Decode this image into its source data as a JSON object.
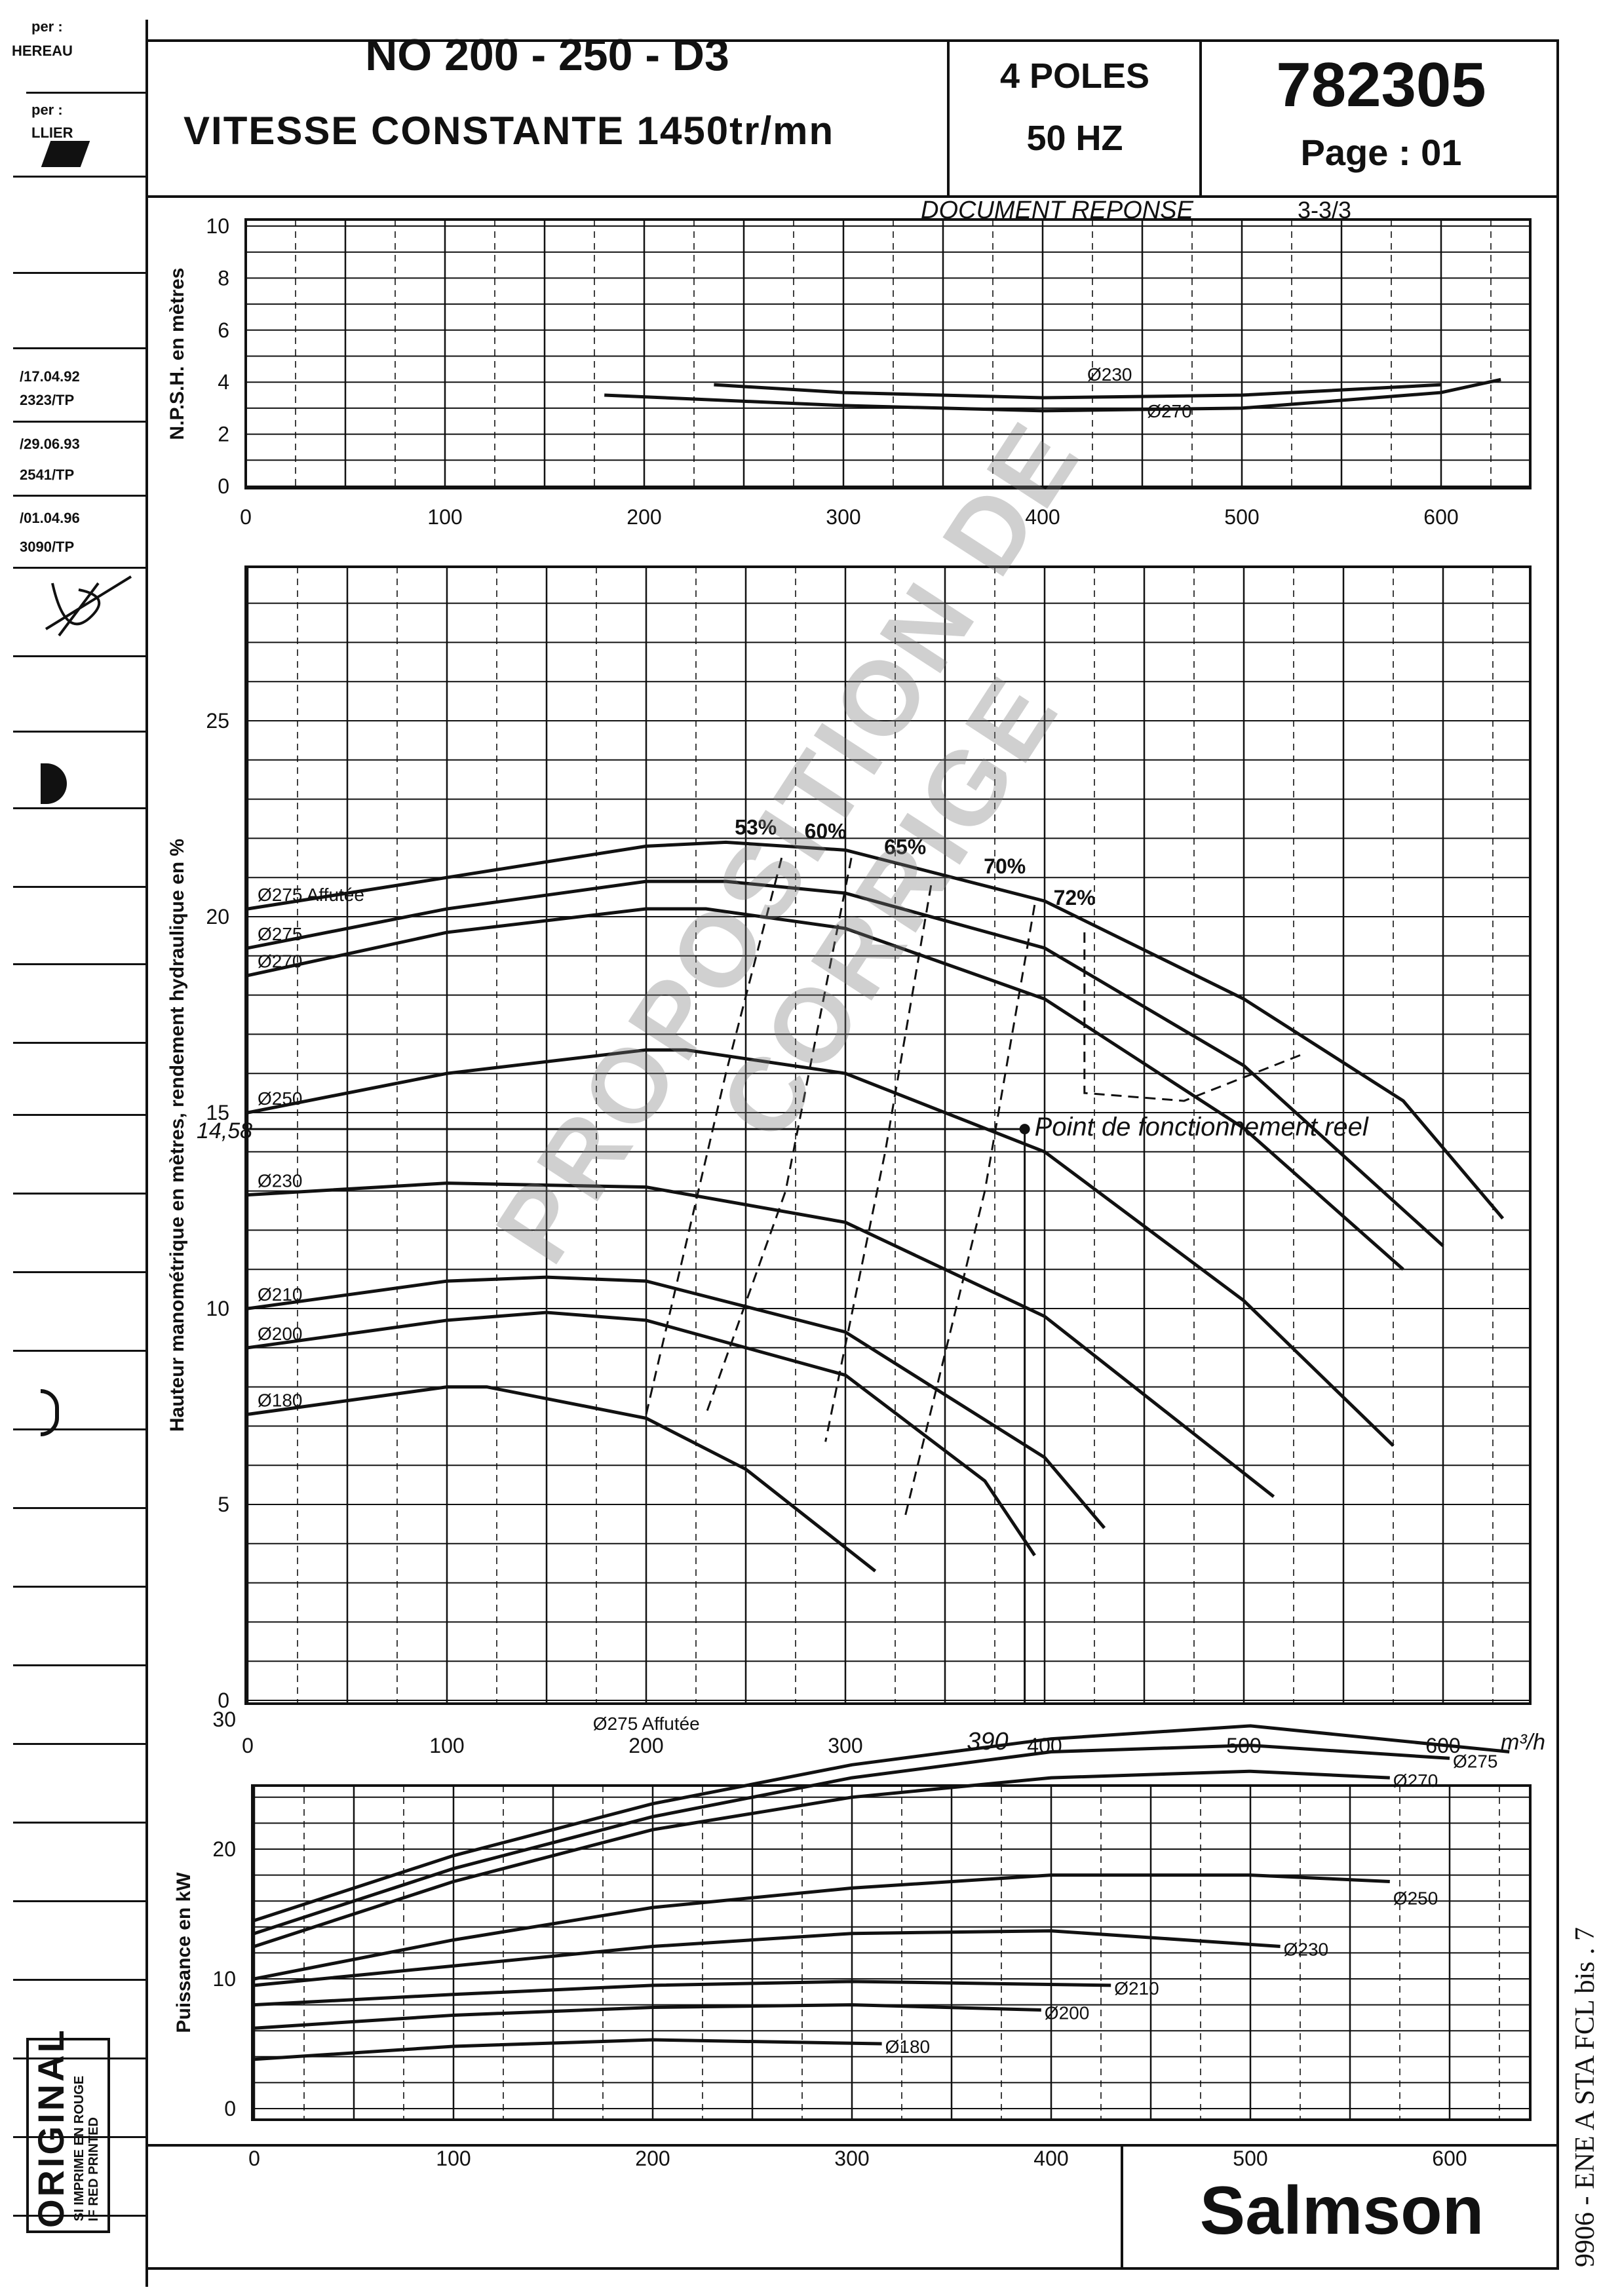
{
  "header": {
    "title": "NO 200 - 250 - D3",
    "subtitle": "VITESSE  CONSTANTE  1450tr/mn",
    "poles": "4  POLES",
    "freq": "50  HZ",
    "ref": "782305",
    "page": "Page : 01",
    "doc_label": "DOCUMENT REPONSE",
    "doc_num": "3-3/3"
  },
  "sidebar": {
    "par1": "per :",
    "name1": "HEREAU",
    "par2": "per :",
    "name2": "LLIER",
    "rev1_date": "/17.04.92",
    "rev1_ref": "2323/TP",
    "rev2_date": "/29.06.93",
    "rev2_ref": "2541/TP",
    "rev3_date": "/01.04.96",
    "rev3_ref": "3090/TP",
    "stamp": "ORIGINAL",
    "stamp_sub1": "SI IMPRIME EN ROUGE",
    "stamp_sub2": "IF RED PRINTED"
  },
  "watermark": "PROPOSITION DE CORRIGE",
  "margin_note": "9906 - ENE A STA FCL  bis . 7",
  "footer": {
    "brand": "Salmson"
  },
  "annotations": {
    "op_point": "Point de fonctionnement reel",
    "head_value": "14,58",
    "flow_value": "390",
    "unit": "m³/h"
  },
  "chart_data": [
    {
      "type": "line",
      "title": "",
      "ylabel": "N.P.S.H. en mètres",
      "xlabel": "",
      "xlim": [
        0,
        620
      ],
      "ylim": [
        0,
        10
      ],
      "x_ticks": [
        0,
        100,
        200,
        300,
        400,
        500,
        600
      ],
      "y_ticks": [
        0,
        2,
        4,
        6,
        8,
        10
      ],
      "grid": true,
      "series": [
        {
          "name": "Ø230",
          "x": [
            235,
            300,
            400,
            500,
            600
          ],
          "y": [
            3.9,
            3.6,
            3.4,
            3.5,
            3.9
          ]
        },
        {
          "name": "Ø270",
          "x": [
            180,
            300,
            400,
            500,
            600,
            630
          ],
          "y": [
            3.5,
            3.1,
            2.9,
            3.0,
            3.6,
            4.1
          ]
        }
      ]
    },
    {
      "type": "line",
      "title": "",
      "ylabel": "Hauteur manométrique en mètres, rendement hydraulique en %",
      "xlabel": "",
      "xlim": [
        0,
        630
      ],
      "ylim": [
        0,
        29
      ],
      "x_ticks": [
        0,
        100,
        200,
        300,
        400,
        500,
        600
      ],
      "y_ticks": [
        0,
        5,
        10,
        15,
        20,
        25
      ],
      "grid": true,
      "series": [
        {
          "name": "Ø275 Affutée",
          "x": [
            0,
            100,
            200,
            240,
            300,
            400,
            500,
            580,
            630
          ],
          "y": [
            20.2,
            21.0,
            21.8,
            21.9,
            21.7,
            20.4,
            17.9,
            15.3,
            12.3
          ]
        },
        {
          "name": "Ø275",
          "x": [
            0,
            100,
            200,
            240,
            300,
            400,
            500,
            600
          ],
          "y": [
            19.2,
            20.2,
            20.9,
            20.9,
            20.6,
            19.2,
            16.2,
            11.6
          ]
        },
        {
          "name": "Ø270",
          "x": [
            0,
            100,
            200,
            230,
            300,
            400,
            500,
            580
          ],
          "y": [
            18.5,
            19.6,
            20.2,
            20.2,
            19.7,
            17.9,
            14.6,
            11.0
          ]
        },
        {
          "name": "Ø250",
          "x": [
            0,
            100,
            200,
            220,
            300,
            400,
            500,
            575
          ],
          "y": [
            15.0,
            16.0,
            16.6,
            16.6,
            16.0,
            14.0,
            10.2,
            6.5
          ]
        },
        {
          "name": "Ø230",
          "x": [
            0,
            100,
            200,
            300,
            400,
            480,
            515
          ],
          "y": [
            12.9,
            13.2,
            13.1,
            12.2,
            9.8,
            6.6,
            5.2
          ]
        },
        {
          "name": "Ø210",
          "x": [
            0,
            100,
            150,
            200,
            300,
            400,
            430
          ],
          "y": [
            10.0,
            10.7,
            10.8,
            10.7,
            9.4,
            6.2,
            4.4
          ]
        },
        {
          "name": "Ø200",
          "x": [
            0,
            100,
            150,
            200,
            300,
            370,
            395
          ],
          "y": [
            9.0,
            9.7,
            9.9,
            9.7,
            8.3,
            5.6,
            3.7
          ]
        },
        {
          "name": "Ø180",
          "x": [
            0,
            100,
            120,
            200,
            250,
            290,
            315
          ],
          "y": [
            7.3,
            8.0,
            8.0,
            7.2,
            5.9,
            4.3,
            3.3
          ]
        }
      ],
      "efficiency_labels": [
        "53%",
        "60%",
        "65%",
        "70%",
        "72%"
      ],
      "operating_point": {
        "x": 390,
        "y": 14.58
      }
    },
    {
      "type": "line",
      "title": "",
      "ylabel": "Puissance en kW",
      "xlabel": "",
      "xlim": [
        0,
        630
      ],
      "ylim": [
        0,
        32
      ],
      "x_ticks": [
        0,
        100,
        200,
        300,
        400,
        500,
        600
      ],
      "y_ticks": [
        0,
        10,
        20,
        30
      ],
      "grid": true,
      "series": [
        {
          "name": "Ø275 Affutée",
          "x": [
            0,
            100,
            200,
            300,
            400,
            500,
            630
          ],
          "y": [
            14.5,
            19.5,
            23.5,
            26.5,
            28.5,
            29.5,
            27.5
          ]
        },
        {
          "name": "Ø275",
          "x": [
            0,
            100,
            200,
            300,
            400,
            500,
            600
          ],
          "y": [
            13.5,
            18.5,
            22.5,
            25.5,
            27.5,
            28,
            27
          ]
        },
        {
          "name": "Ø270",
          "x": [
            0,
            100,
            200,
            300,
            400,
            500,
            570
          ],
          "y": [
            12.5,
            17.5,
            21.5,
            24,
            25.5,
            26,
            25.5
          ]
        },
        {
          "name": "Ø250",
          "x": [
            0,
            100,
            200,
            300,
            400,
            500,
            570
          ],
          "y": [
            10,
            13,
            15.5,
            17,
            18,
            18,
            17.5
          ]
        },
        {
          "name": "Ø230",
          "x": [
            0,
            100,
            200,
            300,
            400,
            515
          ],
          "y": [
            9.5,
            11,
            12.5,
            13.5,
            13.7,
            12.5
          ]
        },
        {
          "name": "Ø210",
          "x": [
            0,
            100,
            200,
            300,
            430
          ],
          "y": [
            8.0,
            8.8,
            9.5,
            9.8,
            9.5
          ]
        },
        {
          "name": "Ø200",
          "x": [
            0,
            100,
            200,
            300,
            395
          ],
          "y": [
            6.2,
            7.2,
            7.8,
            8.0,
            7.6
          ]
        },
        {
          "name": "Ø180",
          "x": [
            0,
            100,
            200,
            315
          ],
          "y": [
            3.8,
            4.8,
            5.3,
            5.0
          ]
        }
      ]
    }
  ]
}
